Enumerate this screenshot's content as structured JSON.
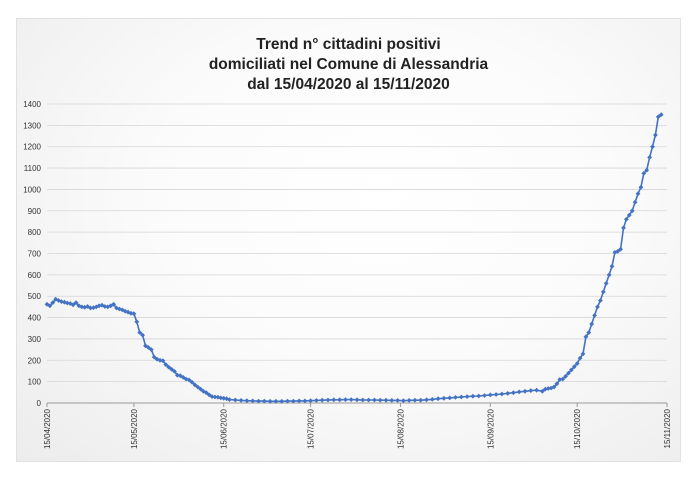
{
  "chart_data": {
    "type": "line",
    "title_lines": [
      "Trend n° cittadini positivi",
      "domiciliati nel Comune di Alessandria",
      "dal 15/04/2020 al 15/11/2020"
    ],
    "xlabel": "",
    "ylabel": "",
    "ylim": [
      0,
      1400
    ],
    "yticks": [
      0,
      100,
      200,
      300,
      400,
      500,
      600,
      700,
      800,
      900,
      1000,
      1100,
      1200,
      1300,
      1400
    ],
    "xlim": [
      "2020-04-15",
      "2020-11-15"
    ],
    "xtick_labels": [
      "15/04/2020",
      "15/05/2020",
      "15/06/2020",
      "15/07/2020",
      "15/08/2020",
      "15/09/2020",
      "15/10/2020",
      "15/11/2020"
    ],
    "grid": true,
    "series": [
      {
        "color": "#4472c4",
        "points": [
          [
            "2020-04-15",
            462
          ],
          [
            "2020-04-16",
            455
          ],
          [
            "2020-04-17",
            470
          ],
          [
            "2020-04-18",
            486
          ],
          [
            "2020-04-19",
            480
          ],
          [
            "2020-04-20",
            475
          ],
          [
            "2020-04-21",
            472
          ],
          [
            "2020-04-22",
            468
          ],
          [
            "2020-04-23",
            466
          ],
          [
            "2020-04-24",
            460
          ],
          [
            "2020-04-25",
            470
          ],
          [
            "2020-04-26",
            455
          ],
          [
            "2020-04-27",
            450
          ],
          [
            "2020-04-28",
            448
          ],
          [
            "2020-04-29",
            452
          ],
          [
            "2020-04-30",
            445
          ],
          [
            "2020-05-01",
            446
          ],
          [
            "2020-05-02",
            450
          ],
          [
            "2020-05-03",
            455
          ],
          [
            "2020-05-04",
            458
          ],
          [
            "2020-05-05",
            452
          ],
          [
            "2020-05-06",
            450
          ],
          [
            "2020-05-07",
            455
          ],
          [
            "2020-05-08",
            462
          ],
          [
            "2020-05-09",
            445
          ],
          [
            "2020-05-10",
            440
          ],
          [
            "2020-05-11",
            436
          ],
          [
            "2020-05-12",
            430
          ],
          [
            "2020-05-13",
            425
          ],
          [
            "2020-05-14",
            420
          ],
          [
            "2020-05-15",
            418
          ],
          [
            "2020-05-16",
            380
          ],
          [
            "2020-05-17",
            330
          ],
          [
            "2020-05-18",
            318
          ],
          [
            "2020-05-19",
            268
          ],
          [
            "2020-05-20",
            260
          ],
          [
            "2020-05-21",
            250
          ],
          [
            "2020-05-22",
            215
          ],
          [
            "2020-05-23",
            205
          ],
          [
            "2020-05-24",
            200
          ],
          [
            "2020-05-25",
            198
          ],
          [
            "2020-05-26",
            180
          ],
          [
            "2020-05-27",
            168
          ],
          [
            "2020-05-28",
            158
          ],
          [
            "2020-05-29",
            148
          ],
          [
            "2020-05-30",
            130
          ],
          [
            "2020-05-31",
            128
          ],
          [
            "2020-06-01",
            120
          ],
          [
            "2020-06-02",
            112
          ],
          [
            "2020-06-03",
            108
          ],
          [
            "2020-06-04",
            98
          ],
          [
            "2020-06-05",
            85
          ],
          [
            "2020-06-06",
            75
          ],
          [
            "2020-06-07",
            65
          ],
          [
            "2020-06-08",
            55
          ],
          [
            "2020-06-09",
            48
          ],
          [
            "2020-06-10",
            38
          ],
          [
            "2020-06-11",
            30
          ],
          [
            "2020-06-12",
            28
          ],
          [
            "2020-06-13",
            27
          ],
          [
            "2020-06-14",
            24
          ],
          [
            "2020-06-15",
            22
          ],
          [
            "2020-06-16",
            20
          ],
          [
            "2020-06-17",
            16
          ],
          [
            "2020-06-19",
            14
          ],
          [
            "2020-06-21",
            12
          ],
          [
            "2020-06-23",
            11
          ],
          [
            "2020-06-25",
            10
          ],
          [
            "2020-06-27",
            9
          ],
          [
            "2020-06-29",
            9
          ],
          [
            "2020-07-01",
            8
          ],
          [
            "2020-07-03",
            8
          ],
          [
            "2020-07-05",
            8
          ],
          [
            "2020-07-07",
            9
          ],
          [
            "2020-07-09",
            9
          ],
          [
            "2020-07-11",
            10
          ],
          [
            "2020-07-13",
            10
          ],
          [
            "2020-07-15",
            11
          ],
          [
            "2020-07-17",
            12
          ],
          [
            "2020-07-19",
            13
          ],
          [
            "2020-07-21",
            14
          ],
          [
            "2020-07-23",
            15
          ],
          [
            "2020-07-25",
            15
          ],
          [
            "2020-07-27",
            16
          ],
          [
            "2020-07-29",
            16
          ],
          [
            "2020-07-31",
            15
          ],
          [
            "2020-08-02",
            14
          ],
          [
            "2020-08-04",
            14
          ],
          [
            "2020-08-06",
            14
          ],
          [
            "2020-08-08",
            13
          ],
          [
            "2020-08-10",
            13
          ],
          [
            "2020-08-12",
            12
          ],
          [
            "2020-08-14",
            12
          ],
          [
            "2020-08-16",
            11
          ],
          [
            "2020-08-18",
            12
          ],
          [
            "2020-08-20",
            13
          ],
          [
            "2020-08-22",
            13
          ],
          [
            "2020-08-24",
            15
          ],
          [
            "2020-08-26",
            17
          ],
          [
            "2020-08-28",
            20
          ],
          [
            "2020-08-30",
            22
          ],
          [
            "2020-09-01",
            24
          ],
          [
            "2020-09-03",
            26
          ],
          [
            "2020-09-05",
            28
          ],
          [
            "2020-09-07",
            30
          ],
          [
            "2020-09-09",
            32
          ],
          [
            "2020-09-11",
            33
          ],
          [
            "2020-09-13",
            35
          ],
          [
            "2020-09-15",
            38
          ],
          [
            "2020-09-17",
            40
          ],
          [
            "2020-09-19",
            42
          ],
          [
            "2020-09-21",
            45
          ],
          [
            "2020-09-23",
            48
          ],
          [
            "2020-09-25",
            52
          ],
          [
            "2020-09-27",
            55
          ],
          [
            "2020-09-29",
            58
          ],
          [
            "2020-10-01",
            60
          ],
          [
            "2020-10-03",
            55
          ],
          [
            "2020-10-04",
            65
          ],
          [
            "2020-10-05",
            68
          ],
          [
            "2020-10-06",
            70
          ],
          [
            "2020-10-07",
            75
          ],
          [
            "2020-10-08",
            90
          ],
          [
            "2020-10-09",
            110
          ],
          [
            "2020-10-10",
            112
          ],
          [
            "2020-10-11",
            125
          ],
          [
            "2020-10-12",
            140
          ],
          [
            "2020-10-13",
            155
          ],
          [
            "2020-10-14",
            170
          ],
          [
            "2020-10-15",
            185
          ],
          [
            "2020-10-16",
            210
          ],
          [
            "2020-10-17",
            230
          ],
          [
            "2020-10-18",
            310
          ],
          [
            "2020-10-19",
            330
          ],
          [
            "2020-10-20",
            370
          ],
          [
            "2020-10-21",
            410
          ],
          [
            "2020-10-22",
            450
          ],
          [
            "2020-10-23",
            480
          ],
          [
            "2020-10-24",
            520
          ],
          [
            "2020-10-25",
            560
          ],
          [
            "2020-10-26",
            600
          ],
          [
            "2020-10-27",
            640
          ],
          [
            "2020-10-28",
            705
          ],
          [
            "2020-10-29",
            710
          ],
          [
            "2020-10-30",
            720
          ],
          [
            "2020-10-31",
            820
          ],
          [
            "2020-11-01",
            860
          ],
          [
            "2020-11-02",
            880
          ],
          [
            "2020-11-03",
            900
          ],
          [
            "2020-11-04",
            940
          ],
          [
            "2020-11-05",
            980
          ],
          [
            "2020-11-06",
            1010
          ],
          [
            "2020-11-07",
            1075
          ],
          [
            "2020-11-08",
            1090
          ],
          [
            "2020-11-09",
            1150
          ],
          [
            "2020-11-10",
            1200
          ],
          [
            "2020-11-11",
            1255
          ],
          [
            "2020-11-12",
            1340
          ],
          [
            "2020-11-13",
            1350
          ]
        ]
      }
    ]
  }
}
